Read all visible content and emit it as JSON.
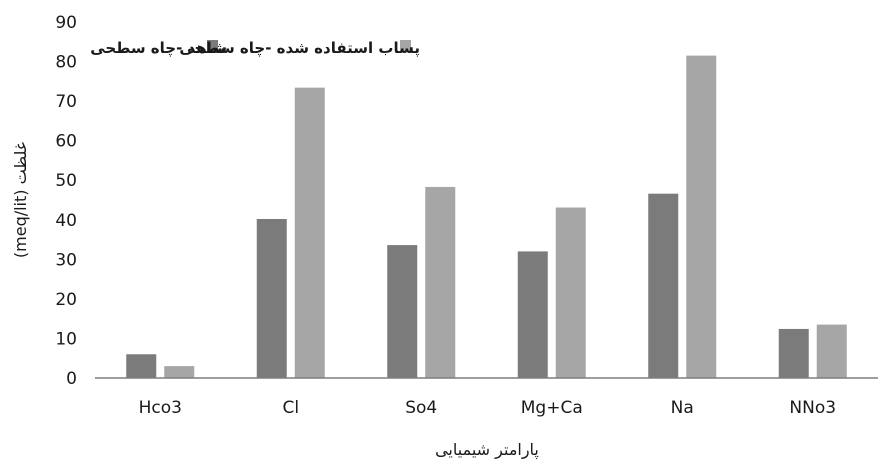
{
  "chart_data": {
    "type": "bar",
    "categories": [
      "Hco3",
      "Cl",
      "So4",
      "Mg+Ca",
      "Na",
      "NNo3"
    ],
    "series": [
      {
        "name": "شاهد -چاه سطحی",
        "values": [
          6,
          40.2,
          33.6,
          32.0,
          46.6,
          12.4
        ],
        "color": "#7b7b7b"
      },
      {
        "name": "پساب استفاده شده -چاه سطحی",
        "values": [
          3,
          73.4,
          48.3,
          43.1,
          81.5,
          13.5
        ],
        "color": "#a6a6a6"
      }
    ],
    "title": "",
    "xlabel": "پارامتر شیمیایی",
    "ylabel": "غلظت (meq/lit)",
    "ylim": [
      0,
      90
    ],
    "yticks": [
      0,
      10,
      20,
      30,
      40,
      50,
      60,
      70,
      80,
      90
    ],
    "grid": false,
    "legend": "top"
  }
}
